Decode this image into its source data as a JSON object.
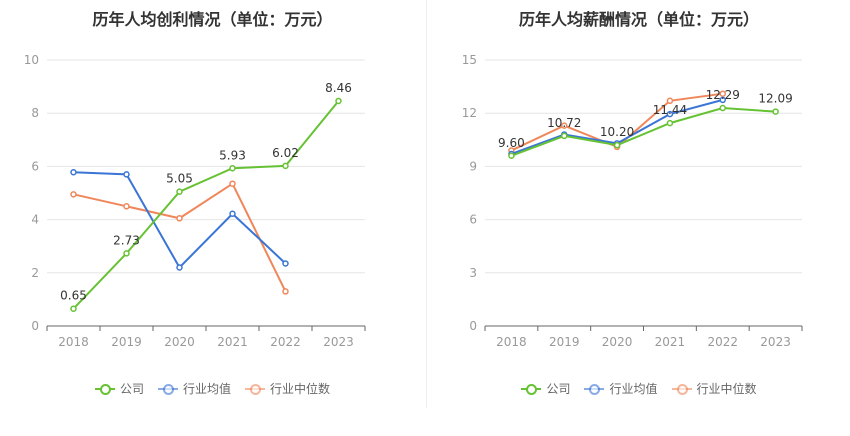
{
  "colors": {
    "company": "#66c233",
    "avg": "#3a75d6",
    "median": "#f0875a"
  },
  "chart_data": [
    {
      "type": "line",
      "title": "历年人均创利情况（单位：万元）",
      "categories": [
        "2018",
        "2019",
        "2020",
        "2021",
        "2022",
        "2023"
      ],
      "y_ticks": [
        "0",
        "2",
        "4",
        "6",
        "8",
        "10"
      ],
      "ylim": [
        0,
        10
      ],
      "series": [
        {
          "name": "公司",
          "key": "company",
          "values": [
            0.65,
            2.73,
            5.05,
            5.93,
            6.02,
            8.46
          ],
          "labels": [
            "0.65",
            "2.73",
            "5.05",
            "5.93",
            "6.02",
            "8.46"
          ]
        },
        {
          "name": "行业均值",
          "key": "avg",
          "values": [
            5.78,
            5.7,
            2.2,
            4.22,
            2.35,
            null
          ]
        },
        {
          "name": "行业中位数",
          "key": "median",
          "values": [
            4.95,
            4.5,
            4.05,
            5.35,
            1.3,
            null
          ]
        }
      ]
    },
    {
      "type": "line",
      "title": "历年人均薪酬情况（单位：万元）",
      "categories": [
        "2018",
        "2019",
        "2020",
        "2021",
        "2022",
        "2023"
      ],
      "y_ticks": [
        "0",
        "3",
        "6",
        "9",
        "12",
        "15"
      ],
      "ylim": [
        0,
        15
      ],
      "series": [
        {
          "name": "公司",
          "key": "company",
          "values": [
            9.6,
            10.72,
            10.2,
            11.44,
            12.29,
            12.09
          ],
          "labels": [
            "9.60",
            "10.72",
            "10.20",
            "11.44",
            "12.29",
            "12.09"
          ]
        },
        {
          "name": "行业均值",
          "key": "avg",
          "values": [
            9.7,
            10.8,
            10.3,
            11.95,
            12.75,
            null
          ]
        },
        {
          "name": "行业中位数",
          "key": "median",
          "values": [
            9.9,
            11.3,
            10.1,
            12.7,
            13.1,
            null
          ]
        }
      ]
    }
  ],
  "legend": [
    {
      "label": "公司",
      "key": "company"
    },
    {
      "label": "行业均值",
      "key": "avg"
    },
    {
      "label": "行业中位数",
      "key": "median"
    }
  ]
}
